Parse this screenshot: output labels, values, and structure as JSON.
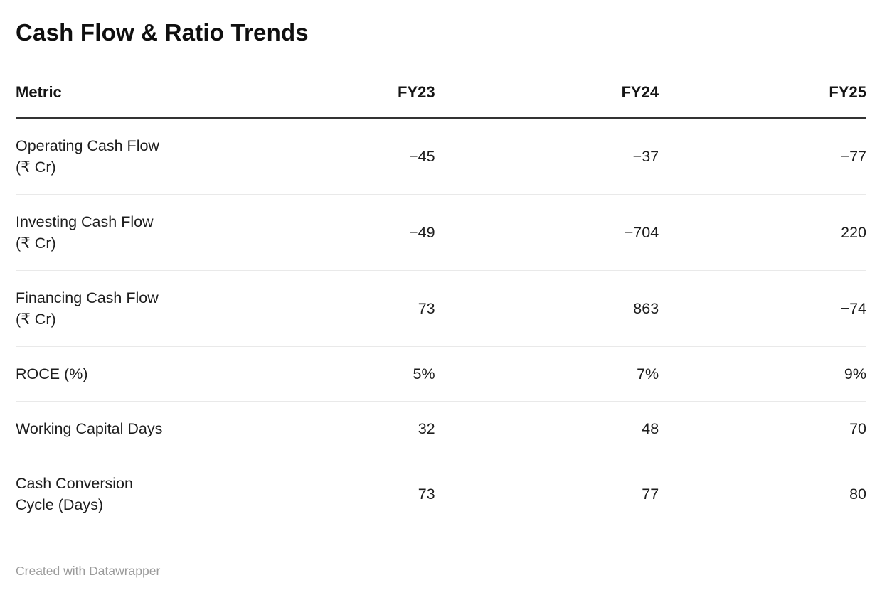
{
  "title": "Cash Flow & Ratio Trends",
  "table": {
    "columns": [
      "Metric",
      "FY23",
      "FY24",
      "FY25"
    ],
    "rows": [
      {
        "metric": "Operating Cash Flow\n(₹ Cr)",
        "values": [
          "−45",
          "−37",
          "−77"
        ]
      },
      {
        "metric": "Investing Cash Flow\n(₹ Cr)",
        "values": [
          "−49",
          "−704",
          "220"
        ]
      },
      {
        "metric": "Financing Cash Flow\n(₹ Cr)",
        "values": [
          "73",
          "863",
          "−74"
        ]
      },
      {
        "metric": "ROCE (%)",
        "values": [
          "5%",
          "7%",
          "9%"
        ]
      },
      {
        "metric": "Working Capital Days",
        "values": [
          "32",
          "48",
          "70"
        ]
      },
      {
        "metric": "Cash Conversion\nCycle (Days)",
        "values": [
          "73",
          "77",
          "80"
        ]
      }
    ]
  },
  "footer": {
    "attribution": "Created with Datawrapper"
  },
  "colors": {
    "title_text": "#0f0f0f",
    "body_text": "#1d1d1d",
    "header_rule": "#333333",
    "row_divider": "#e9e9e9",
    "attribution_text": "#9b9b9b",
    "background": "#ffffff"
  },
  "chart_data": {
    "type": "table",
    "title": "Cash Flow & Ratio Trends",
    "columns": [
      "Metric",
      "FY23",
      "FY24",
      "FY25"
    ],
    "categories": [
      "FY23",
      "FY24",
      "FY25"
    ],
    "series": [
      {
        "name": "Operating Cash Flow (₹ Cr)",
        "values": [
          -45,
          -37,
          -77
        ]
      },
      {
        "name": "Investing Cash Flow (₹ Cr)",
        "values": [
          -49,
          -704,
          220
        ]
      },
      {
        "name": "Financing Cash Flow (₹ Cr)",
        "values": [
          73,
          863,
          -74
        ]
      },
      {
        "name": "ROCE (%)",
        "values": [
          "5%",
          "7%",
          "9%"
        ]
      },
      {
        "name": "Working Capital Days",
        "values": [
          32,
          48,
          70
        ]
      },
      {
        "name": "Cash Conversion Cycle (Days)",
        "values": [
          73,
          77,
          80
        ]
      }
    ],
    "layout": {
      "grid": "horizontal-row-dividers",
      "header_rule": true,
      "legend": "none"
    }
  }
}
